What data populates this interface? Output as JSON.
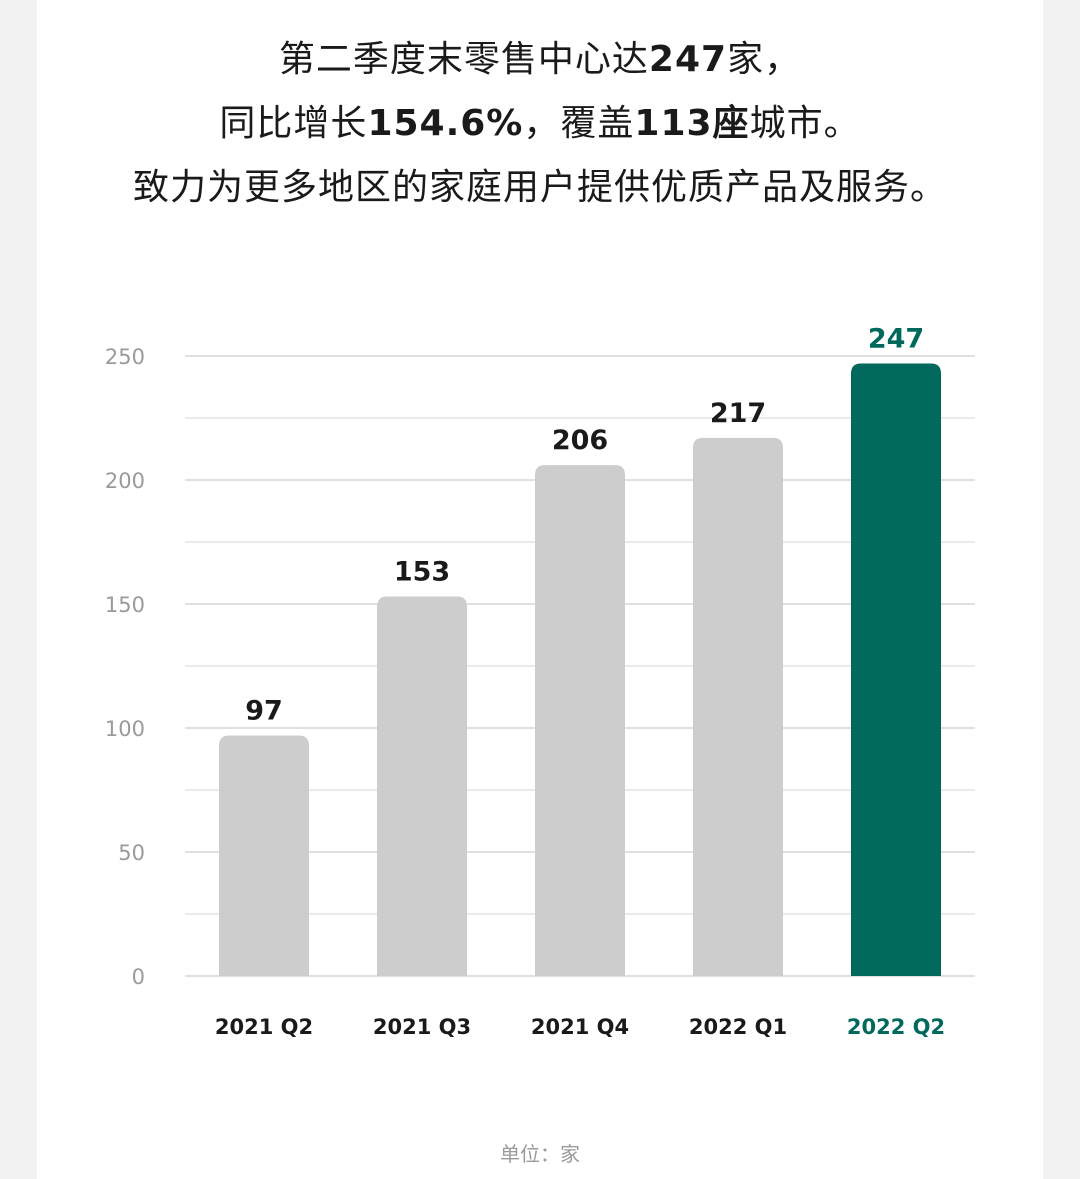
{
  "headline": {
    "line1": [
      {
        "text": "第二季度末零售中心达",
        "bold": false
      },
      {
        "text": "247",
        "bold": true
      },
      {
        "text": "家，",
        "bold": false
      }
    ],
    "line2": [
      {
        "text": "同比增长",
        "bold": false
      },
      {
        "text": "154.6%",
        "bold": true
      },
      {
        "text": "，覆盖",
        "bold": false
      },
      {
        "text": "113座",
        "bold": true
      },
      {
        "text": "城市。",
        "bold": false
      }
    ],
    "line3": [
      {
        "text": "致力为更多地区的家庭用户提供优质产品及服务。",
        "bold": false
      }
    ]
  },
  "unit_label": "单位：家",
  "colors": {
    "bar_default": "#cdcdcd",
    "bar_highlight": "#00695c",
    "label_default": "#1a1a1a",
    "label_highlight": "#00695c",
    "grid": "#d6d6d6",
    "tick": "#9a9a9a"
  },
  "chart_data": {
    "type": "bar",
    "categories": [
      "2021 Q2",
      "2021 Q3",
      "2021 Q4",
      "2022 Q1",
      "2022 Q2"
    ],
    "values": [
      97,
      153,
      206,
      217,
      247
    ],
    "data_labels": [
      "97",
      "153",
      "206",
      "217",
      "247"
    ],
    "highlight_index": 4,
    "ylim": [
      0,
      250
    ],
    "y_ticks": [
      0,
      50,
      100,
      150,
      200,
      250
    ],
    "grid": true,
    "title": "",
    "xlabel": "",
    "ylabel": ""
  }
}
